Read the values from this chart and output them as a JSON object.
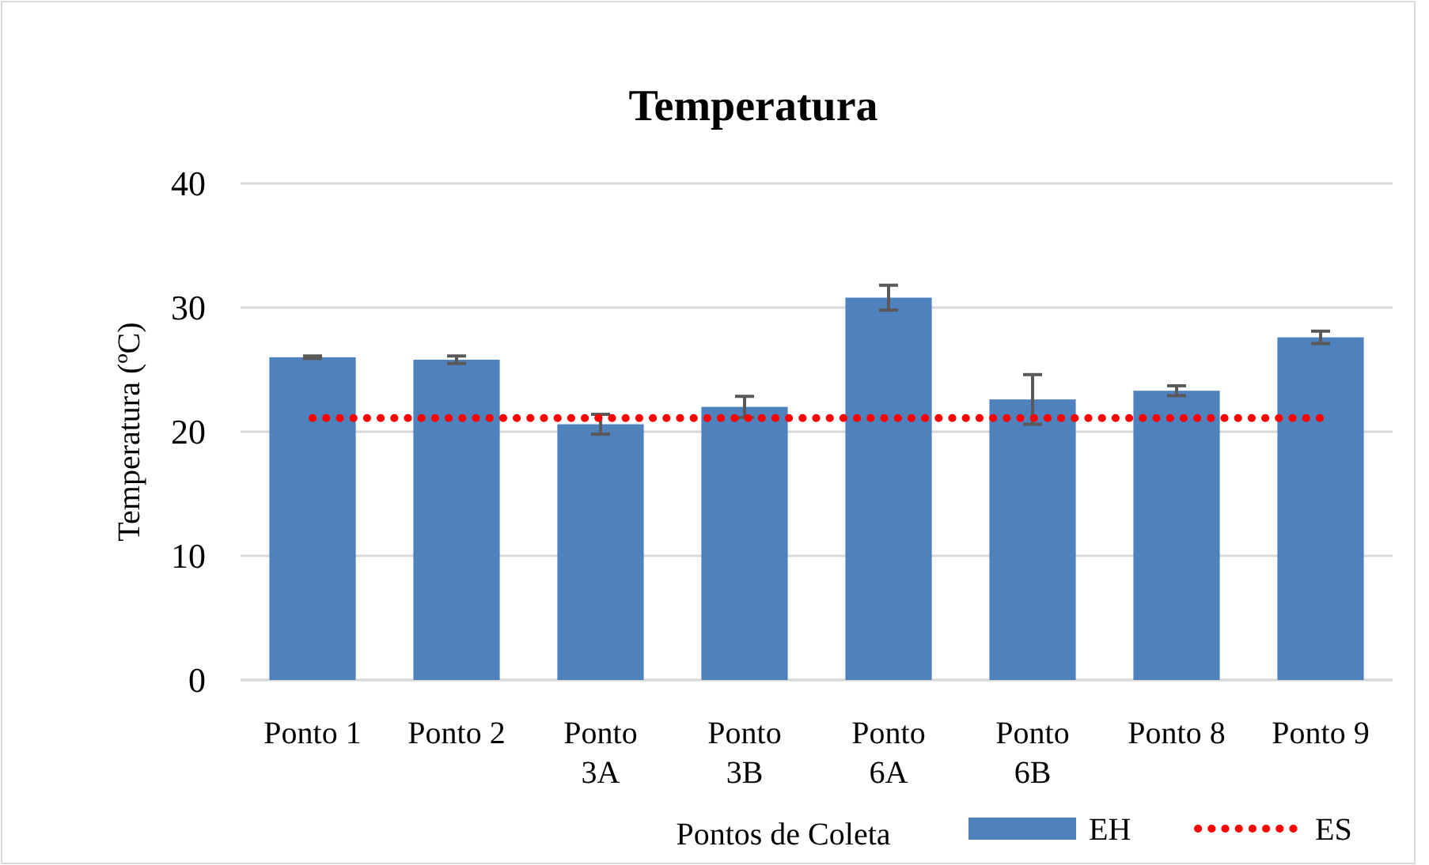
{
  "chart_data": {
    "type": "bar",
    "title": "Temperatura",
    "xlabel": "Pontos de Coleta",
    "ylabel": "Temperatura (ºC)",
    "categories": [
      "Ponto 1",
      "Ponto 2",
      "Ponto 3A",
      "Ponto 3B",
      "Ponto 6A",
      "Ponto 6B",
      "Ponto 8",
      "Ponto 9"
    ],
    "series": [
      {
        "name": "EH",
        "color": "#4f81bd",
        "values": [
          26.0,
          25.8,
          20.6,
          22.0,
          30.8,
          22.6,
          23.3,
          27.6
        ],
        "errors": [
          0.1,
          0.3,
          0.8,
          0.85,
          1.0,
          2.0,
          0.4,
          0.5
        ]
      },
      {
        "name": "ES",
        "type": "line",
        "color": "#ff0000",
        "line_style": "dotted",
        "marker": "none",
        "values": [
          21.1,
          21.1,
          21.1,
          21.1,
          21.1,
          21.1,
          21.1,
          21.1
        ]
      }
    ],
    "ylim": [
      0,
      40
    ],
    "yticks": [
      0,
      10,
      20,
      30,
      40
    ],
    "grid": "y",
    "legend": "bottom right"
  }
}
